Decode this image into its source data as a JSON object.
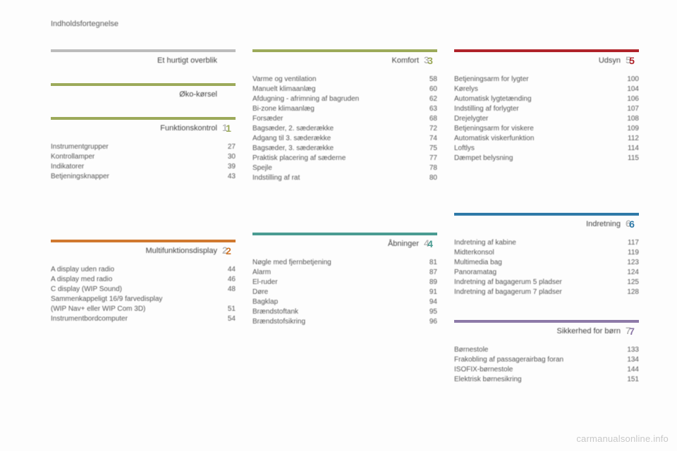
{
  "page_title": "Indholdsfortegnelse",
  "watermark": "carmanualsonline.info",
  "badge_font_size": 14,
  "columns": [
    {
      "sections": [
        {
          "title": "Et hurtigt overblik",
          "rule_color": "#bcbcbc",
          "badge": " ",
          "badge_color": "#bcbcbc",
          "items": []
        },
        {
          "title": "Øko-kørsel",
          "rule_color": "#9caa5a",
          "badge": " ",
          "badge_color": "#9caa5a",
          "items": []
        },
        {
          "title": "Funktionskontrol",
          "rule_color": "#9caa5a",
          "badge": "1",
          "badge_color": "#9caa5a",
          "items": [
            {
              "label": "Instrumentgrupper",
              "page": "27"
            },
            {
              "label": "Kontrollamper",
              "page": "30"
            },
            {
              "label": "Indikatorer",
              "page": "39"
            },
            {
              "label": "Betjeningsknapper",
              "page": "43"
            }
          ]
        },
        {
          "spacer": 60
        },
        {
          "title": "Multifunktionsdisplay",
          "rule_color": "#d0792f",
          "badge": "2",
          "badge_color": "#d0792f",
          "items": [
            {
              "label": "A display uden radio",
              "page": "44"
            },
            {
              "label": "A display med radio",
              "page": "46"
            },
            {
              "label": "C display (WIP Sound)",
              "page": "48"
            },
            {
              "label": "Sammenkappeligt 16/9 farvedisplay",
              "page": ""
            },
            {
              "label": "  (WIP Nav+ eller WIP Com 3D)",
              "page": "51"
            },
            {
              "label": "Instrumentbordcomputer",
              "page": "54"
            }
          ]
        }
      ]
    },
    {
      "sections": [
        {
          "title": "Komfort",
          "rule_color": "#9caa5a",
          "badge": "3",
          "badge_color": "#9caa5a",
          "items": [
            {
              "label": "Varme og ventilation",
              "page": "58"
            },
            {
              "label": "Manuelt klimaanlæg",
              "page": "60"
            },
            {
              "label": "Afdugning - afrimning af bagruden",
              "page": "62"
            },
            {
              "label": "Bi-zone klimaanlæg",
              "page": "63"
            },
            {
              "label": "Forsæder",
              "page": "68"
            },
            {
              "label": "Bagsæder, 2. sæderække",
              "page": "72"
            },
            {
              "label": "Adgang til 3. sæderække",
              "page": "74"
            },
            {
              "label": "Bagsæder, 3. sæderække",
              "page": "75"
            },
            {
              "label": "Praktisk placering af sæderne",
              "page": "77"
            },
            {
              "label": "Spejle",
              "page": "78"
            },
            {
              "label": "Indstilling af rat",
              "page": "80"
            }
          ]
        },
        {
          "spacer": 48
        },
        {
          "title": "Åbninger",
          "rule_color": "#4a9c92",
          "badge": "4",
          "badge_color": "#4a9c92",
          "items": [
            {
              "label": "Nøgle med fjernbetjening",
              "page": "81"
            },
            {
              "label": "Alarm",
              "page": "87"
            },
            {
              "label": "El-ruder",
              "page": "89"
            },
            {
              "label": "Døre",
              "page": "91"
            },
            {
              "label": "Bagklap",
              "page": "94"
            },
            {
              "label": "Brændstoftank",
              "page": "95"
            },
            {
              "label": "Brændstofsikring",
              "page": "96"
            }
          ]
        }
      ]
    },
    {
      "sections": [
        {
          "title": "Udsyn",
          "rule_color": "#b0232a",
          "badge": "5",
          "badge_color": "#b0232a",
          "items": [
            {
              "label": "Betjeningsarm for lygter",
              "page": "100"
            },
            {
              "label": "Kørelys",
              "page": "104"
            },
            {
              "label": "Automatisk lygtetænding",
              "page": "106"
            },
            {
              "label": "Indstilling af forlygter",
              "page": "107"
            },
            {
              "label": "Drejelygter",
              "page": "108"
            },
            {
              "label": "Betjeningsarm for viskere",
              "page": "109"
            },
            {
              "label": "Automatisk viskerfunktion",
              "page": "112"
            },
            {
              "label": "Loftlys",
              "page": "114"
            },
            {
              "label": "Dæmpet belysning",
              "page": "115"
            }
          ]
        },
        {
          "spacer": 48
        },
        {
          "title": "Indretning",
          "rule_color": "#2f7aa8",
          "badge": "6",
          "badge_color": "#2f7aa8",
          "items": [
            {
              "label": "Indretning af kabine",
              "page": "117"
            },
            {
              "label": "Midterkonsol",
              "page": "119"
            },
            {
              "label": "Multimedia bag",
              "page": "123"
            },
            {
              "label": "Panoramatag",
              "page": "124"
            },
            {
              "label": "Indretning af bagagerum 5 pladser",
              "page": "125"
            },
            {
              "label": "Indretning af bagagerum 7 pladser",
              "page": "128"
            }
          ]
        },
        {
          "spacer": 10
        },
        {
          "title": "Sikkerhed for børn",
          "rule_color": "#8d7aa8",
          "badge": "7",
          "badge_color": "#8d7aa8",
          "items": [
            {
              "label": "Børnestole",
              "page": "133"
            },
            {
              "label": "Frakobling af passagerairbag foran",
              "page": "134"
            },
            {
              "label": "ISOFIX-børnestole",
              "page": "144"
            },
            {
              "label": "Elektrisk børnesikring",
              "page": "151"
            }
          ]
        }
      ]
    }
  ]
}
